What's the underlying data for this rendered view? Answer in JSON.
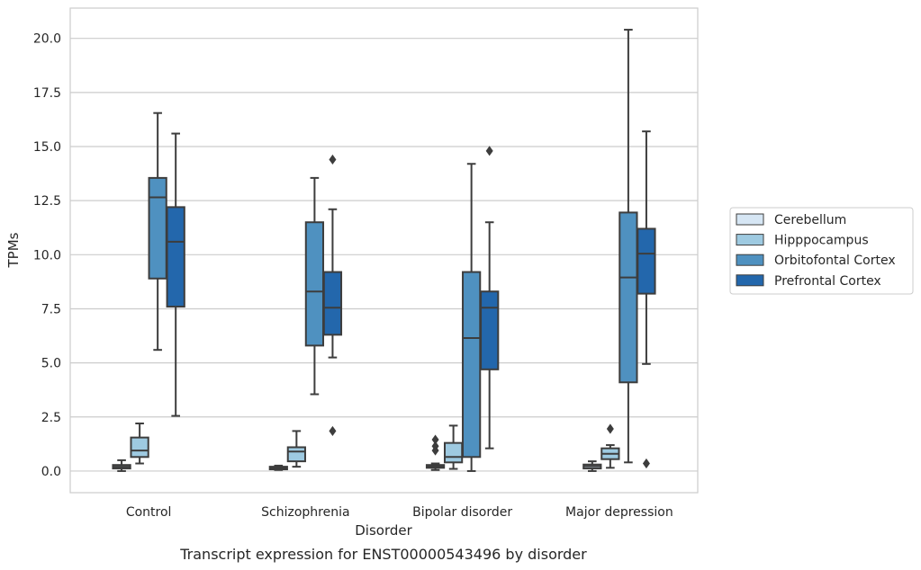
{
  "chart_data": {
    "type": "box",
    "title": "",
    "caption": "Transcript expression for ENST00000543496 by disorder",
    "xlabel": "Disorder",
    "ylabel": "TPMs",
    "ylim": [
      -1.0,
      21.4
    ],
    "yticks": [
      "0.0",
      "2.5",
      "5.0",
      "7.5",
      "10.0",
      "12.5",
      "15.0",
      "17.5",
      "20.0"
    ],
    "grid": "horizontal",
    "legend_position": "right",
    "categories": [
      "Control",
      "Schizophrenia",
      "Bipolar disorder",
      "Major depression"
    ],
    "series": [
      {
        "name": "Cerebellum",
        "color": "#d6e6f4",
        "boxes": [
          {
            "category": "Control",
            "whislo": 0.0,
            "q1": 0.12,
            "med": 0.2,
            "q3": 0.28,
            "whishi": 0.5,
            "fliers": []
          },
          {
            "category": "Schizophrenia",
            "whislo": 0.05,
            "q1": 0.08,
            "med": 0.14,
            "q3": 0.2,
            "whishi": 0.25,
            "fliers": []
          },
          {
            "category": "Bipolar disorder",
            "whislo": 0.05,
            "q1": 0.15,
            "med": 0.22,
            "q3": 0.28,
            "whishi": 0.35,
            "fliers": [
              0.95,
              1.15,
              1.45
            ]
          },
          {
            "category": "Major depression",
            "whislo": 0.0,
            "q1": 0.12,
            "med": 0.22,
            "q3": 0.3,
            "whishi": 0.45,
            "fliers": []
          }
        ]
      },
      {
        "name": "Hipppocampus",
        "color": "#9ecae1",
        "boxes": [
          {
            "category": "Control",
            "whislo": 0.35,
            "q1": 0.65,
            "med": 0.95,
            "q3": 1.55,
            "whishi": 2.2,
            "fliers": []
          },
          {
            "category": "Schizophrenia",
            "whislo": 0.2,
            "q1": 0.45,
            "med": 0.9,
            "q3": 1.1,
            "whishi": 1.85,
            "fliers": []
          },
          {
            "category": "Bipolar disorder",
            "whislo": 0.1,
            "q1": 0.4,
            "med": 0.65,
            "q3": 1.3,
            "whishi": 2.1,
            "fliers": []
          },
          {
            "category": "Major depression",
            "whislo": 0.15,
            "q1": 0.55,
            "med": 0.8,
            "q3": 1.05,
            "whishi": 1.2,
            "fliers": [
              1.95
            ]
          }
        ]
      },
      {
        "name": "Orbitofontal Cortex",
        "color": "#4f91c0",
        "boxes": [
          {
            "category": "Control",
            "whislo": 5.6,
            "q1": 8.9,
            "med": 12.65,
            "q3": 13.55,
            "whishi": 16.55,
            "fliers": []
          },
          {
            "category": "Schizophrenia",
            "whislo": 3.55,
            "q1": 5.8,
            "med": 8.3,
            "q3": 11.5,
            "whishi": 13.55,
            "fliers": []
          },
          {
            "category": "Bipolar disorder",
            "whislo": 0.0,
            "q1": 0.65,
            "med": 6.15,
            "q3": 9.2,
            "whishi": 14.2,
            "fliers": []
          },
          {
            "category": "Major depression",
            "whislo": 0.4,
            "q1": 4.1,
            "med": 8.95,
            "q3": 11.95,
            "whishi": 20.4,
            "fliers": []
          }
        ]
      },
      {
        "name": "Prefrontal Cortex",
        "color": "#2367ac",
        "boxes": [
          {
            "category": "Control",
            "whislo": 2.55,
            "q1": 7.6,
            "med": 10.6,
            "q3": 12.2,
            "whishi": 15.6,
            "fliers": []
          },
          {
            "category": "Schizophrenia",
            "whislo": 5.25,
            "q1": 6.3,
            "med": 7.55,
            "q3": 9.2,
            "whishi": 12.1,
            "fliers": [
              1.85,
              14.4
            ]
          },
          {
            "category": "Bipolar disorder",
            "whislo": 1.05,
            "q1": 4.7,
            "med": 7.55,
            "q3": 8.3,
            "whishi": 11.5,
            "fliers": [
              14.8
            ]
          },
          {
            "category": "Major depression",
            "whislo": 4.95,
            "q1": 8.2,
            "med": 10.05,
            "q3": 11.2,
            "whishi": 15.7,
            "fliers": [
              0.35
            ]
          }
        ]
      }
    ]
  }
}
